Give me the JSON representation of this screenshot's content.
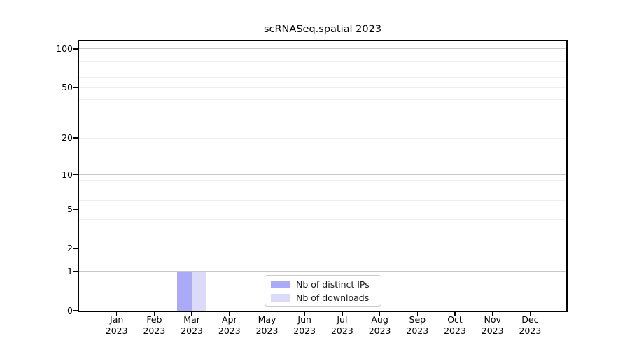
{
  "title": "scRNASeq.spatial 2023",
  "chart_data": {
    "type": "bar",
    "title": "scRNASeq.spatial 2023",
    "categories": [
      "Jan 2023",
      "Feb 2023",
      "Mar 2023",
      "Apr 2023",
      "May 2023",
      "Jun 2023",
      "Jul 2023",
      "Aug 2023",
      "Sep 2023",
      "Oct 2023",
      "Nov 2023",
      "Dec 2023"
    ],
    "series": [
      {
        "name": "Nb of distinct IPs",
        "color": "#aaaaf8",
        "values": [
          0,
          0,
          1,
          0,
          0,
          0,
          0,
          0,
          0,
          0,
          0,
          0
        ]
      },
      {
        "name": "Nb of downloads",
        "color": "#dbdbf9",
        "values": [
          0,
          0,
          1,
          0,
          0,
          0,
          0,
          0,
          0,
          0,
          0,
          0
        ]
      }
    ],
    "yscale": "log1p",
    "ylim": [
      0,
      115
    ],
    "ytick_labels": [
      "100",
      "50",
      "20",
      "10",
      "5",
      "2",
      "1",
      "0"
    ],
    "yticks": [
      100,
      50,
      20,
      10,
      5,
      2,
      1,
      0
    ],
    "yticks_major_grid": [
      1,
      10,
      100
    ],
    "yticks_minor_grid": [
      2,
      3,
      4,
      5,
      6,
      7,
      8,
      9,
      20,
      30,
      40,
      50,
      60,
      70,
      80,
      90
    ],
    "grid": "horizontal",
    "legend": {
      "position": "lower-center",
      "entries": [
        "Nb of distinct IPs",
        "Nb of downloads"
      ]
    }
  },
  "colors": {
    "bar_distinct_ips": "#aaaaf8",
    "bar_downloads": "#dbdbf9",
    "grid_major": "#c6c6c6",
    "grid_minor": "#efefef",
    "axis": "#000000",
    "background": "#ffffff"
  }
}
